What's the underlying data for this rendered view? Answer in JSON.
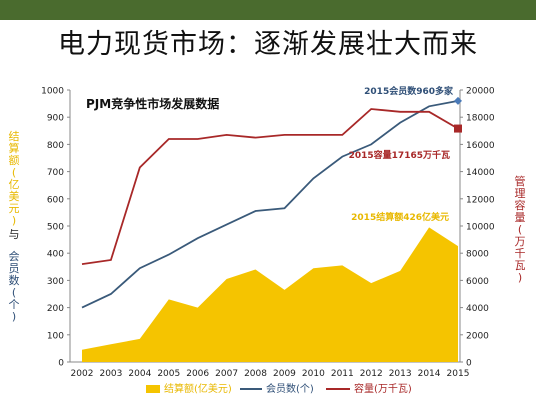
{
  "slide": {
    "title": "电力现货市场：逐渐发展壮大而来",
    "band_color": "#4a6b2e"
  },
  "chart_data": {
    "type": "area+line",
    "title": "PJM竞争性市场发展数据",
    "categories": [
      "2002",
      "2003",
      "2004",
      "2005",
      "2006",
      "2007",
      "2008",
      "2009",
      "2010",
      "2011",
      "2012",
      "2013",
      "2014",
      "2015"
    ],
    "y_left": {
      "label": "结算额(亿美元)与会员数(个)",
      "label_part1": "结算额(亿美元)",
      "label_mid": "与",
      "label_part2": "会员数(个)",
      "range": [
        0,
        1000
      ],
      "ticks": [
        0,
        100,
        200,
        300,
        400,
        500,
        600,
        700,
        800,
        900,
        1000
      ]
    },
    "y_right": {
      "label": "管理容量(万千瓦)",
      "range": [
        0,
        20000
      ],
      "ticks": [
        0,
        2000,
        4000,
        6000,
        8000,
        10000,
        12000,
        14000,
        16000,
        18000,
        20000
      ]
    },
    "series": [
      {
        "name": "结算额(亿美元)",
        "type": "area",
        "axis": "left",
        "color": "#f5c400",
        "values": [
          45,
          65,
          85,
          230,
          200,
          305,
          340,
          265,
          345,
          355,
          290,
          335,
          495,
          426
        ]
      },
      {
        "name": "会员数(个)",
        "type": "line",
        "axis": "left",
        "color": "#3a5a7a",
        "values": [
          200,
          250,
          345,
          395,
          455,
          505,
          555,
          565,
          675,
          755,
          800,
          880,
          940,
          960
        ]
      },
      {
        "name": "容量(万千瓦)",
        "type": "line",
        "axis": "right",
        "color": "#a82828",
        "values": [
          7200,
          7500,
          14300,
          16400,
          16400,
          16700,
          16500,
          16700,
          16700,
          16700,
          18600,
          18400,
          18400,
          17165
        ]
      }
    ],
    "annotations": [
      {
        "text": "2015会员数960多家",
        "color": "#2f4f77"
      },
      {
        "text": "2015容量17165万千瓦",
        "color": "#a82828"
      },
      {
        "text": "2015结算额426亿美元",
        "color": "#e8b800"
      }
    ],
    "legend": {
      "position": "bottom",
      "items": [
        "结算额(亿美元)",
        "会员数(个)",
        "容量(万千瓦)"
      ]
    },
    "grid": false
  }
}
